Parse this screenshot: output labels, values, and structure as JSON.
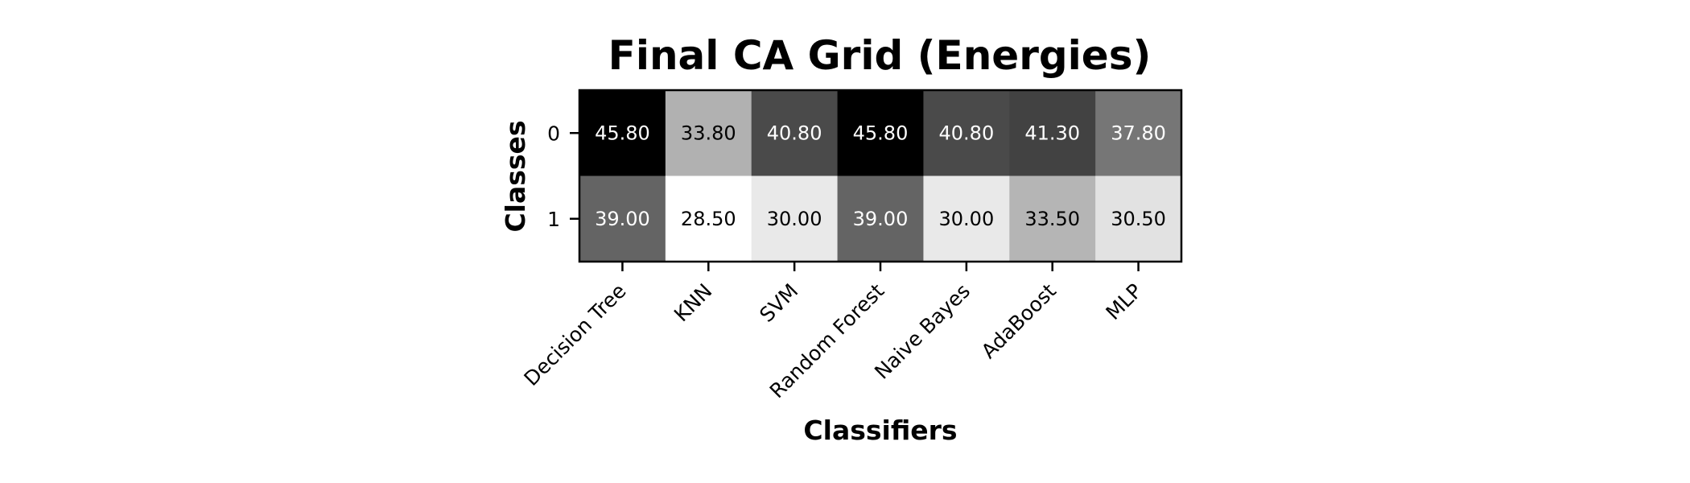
{
  "chart_data": {
    "type": "heatmap",
    "title": "Final CA Grid (Energies)",
    "xlabel": "Classifiers",
    "ylabel": "Classes",
    "x_categories": [
      "Decision Tree",
      "KNN",
      "SVM",
      "Random Forest",
      "Naive Bayes",
      "AdaBoost",
      "MLP"
    ],
    "y_categories": [
      "0",
      "1"
    ],
    "values": [
      [
        45.8,
        33.8,
        40.8,
        45.8,
        40.8,
        41.3,
        37.8
      ],
      [
        39.0,
        28.5,
        30.0,
        39.0,
        30.0,
        33.5,
        30.5
      ]
    ],
    "value_format": "2-decimals",
    "colormap": "grayscale-reversed",
    "grid": false,
    "legend": "none"
  }
}
